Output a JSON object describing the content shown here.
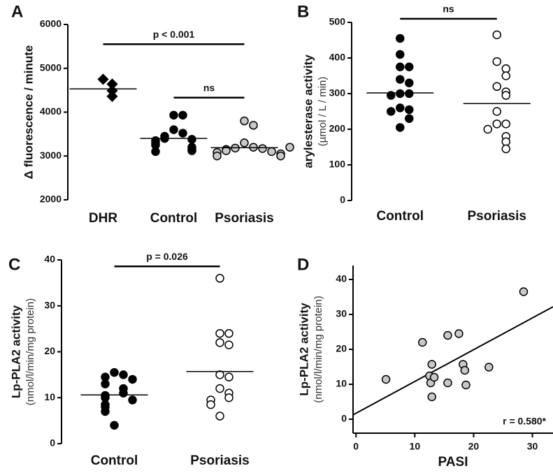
{
  "chart_data": [
    {
      "type": "strip",
      "label": "A",
      "ylabel": "Δ fluorescence / minute",
      "categories": [
        "DHR",
        "Control",
        "Psoriasis"
      ],
      "values": [
        [
          4750,
          4640,
          4490,
          4360
        ],
        [
          3930,
          3930,
          3600,
          3520,
          3450,
          3400,
          3380,
          3350,
          3300,
          3250,
          3200,
          3150,
          3120,
          3100
        ],
        [
          3800,
          3700,
          3300,
          3200,
          3180,
          3170,
          3150,
          3120,
          3100,
          3080,
          3050,
          3000,
          3000,
          3200
        ]
      ],
      "means": [
        4530,
        3400,
        3190
      ],
      "markers": [
        "diamond",
        "circle",
        "circle"
      ],
      "colors": [
        "#000000",
        "#000000",
        "#c8c8c8"
      ],
      "ylim": [
        2000,
        6000
      ],
      "yticks": [
        2000,
        3000,
        4000,
        5000,
        6000
      ],
      "brackets": [
        {
          "label": "p < 0.001",
          "categories": [
            0,
            2
          ],
          "y": 5550
        },
        {
          "label": "ns",
          "categories": [
            1,
            2
          ],
          "y": 4330
        }
      ]
    },
    {
      "type": "strip",
      "label": "B",
      "ylabel": "arylesterase activity",
      "ylabel_sub": "(µmol / L / min)",
      "categories": [
        "Control",
        "Psoriasis"
      ],
      "values": [
        [
          455,
          410,
          375,
          375,
          340,
          330,
          300,
          300,
          295,
          260,
          255,
          250,
          230,
          205
        ],
        [
          465,
          390,
          370,
          350,
          320,
          305,
          295,
          250,
          215,
          215,
          200,
          180,
          165,
          145
        ]
      ],
      "means": [
        302,
        272
      ],
      "markers": [
        "circle",
        "circle"
      ],
      "colors": [
        "#000000",
        "#ffffff"
      ],
      "ylim": [
        0,
        500
      ],
      "yticks": [
        0,
        100,
        200,
        300,
        400,
        500
      ],
      "brackets": [
        {
          "label": "ns",
          "categories": [
            0,
            1
          ],
          "y": 510
        }
      ]
    },
    {
      "type": "strip",
      "label": "C",
      "ylabel": "Lp-PLA2 activity",
      "ylabel_sub": "(nmol/l/min/mg protein)",
      "categories": [
        "Control",
        "Psoriasis"
      ],
      "values": [
        [
          15.5,
          15,
          14.5,
          14,
          13,
          12,
          11,
          10.5,
          10,
          9.5,
          8.5,
          8,
          7,
          4
        ],
        [
          36,
          24,
          24,
          22,
          21.5,
          15,
          14.5,
          12,
          11,
          10,
          9.5,
          8.5,
          6
        ]
      ],
      "means": [
        10.6,
        15.7
      ],
      "markers": [
        "circle",
        "circle"
      ],
      "colors": [
        "#000000",
        "#ffffff"
      ],
      "ylim": [
        0,
        40
      ],
      "yticks": [
        0,
        10,
        20,
        30,
        40
      ],
      "brackets": [
        {
          "label": "p = 0.026",
          "categories": [
            0,
            1
          ],
          "y": 38.6
        }
      ]
    },
    {
      "type": "scatter",
      "label": "D",
      "ylabel": "Lp-PLA2 activity",
      "ylabel_sub": "(nmol/l/min/mg protein)",
      "xlabel": "PASI",
      "x": [
        5.1,
        11.3,
        12.9,
        12.5,
        12.7,
        13.3,
        12.9,
        15.6,
        15.6,
        17.5,
        18.2,
        18.5,
        18.7,
        22.6,
        28.5
      ],
      "y": [
        11.4,
        22,
        15.7,
        12.4,
        10.4,
        12,
        6.4,
        10.4,
        24,
        24.5,
        15.7,
        14,
        9.8,
        14.9,
        36.5
      ],
      "color": "#c8c8c8",
      "regression": {
        "slope": 0.91,
        "intercept": 1.7
      },
      "annotation": "r = 0.580*",
      "xlim": [
        -0.5,
        33.5
      ],
      "xticks": [
        0,
        10,
        20,
        30
      ],
      "ylim": [
        -4,
        44
      ],
      "yticks": [
        0,
        10,
        20,
        30,
        40
      ]
    }
  ]
}
